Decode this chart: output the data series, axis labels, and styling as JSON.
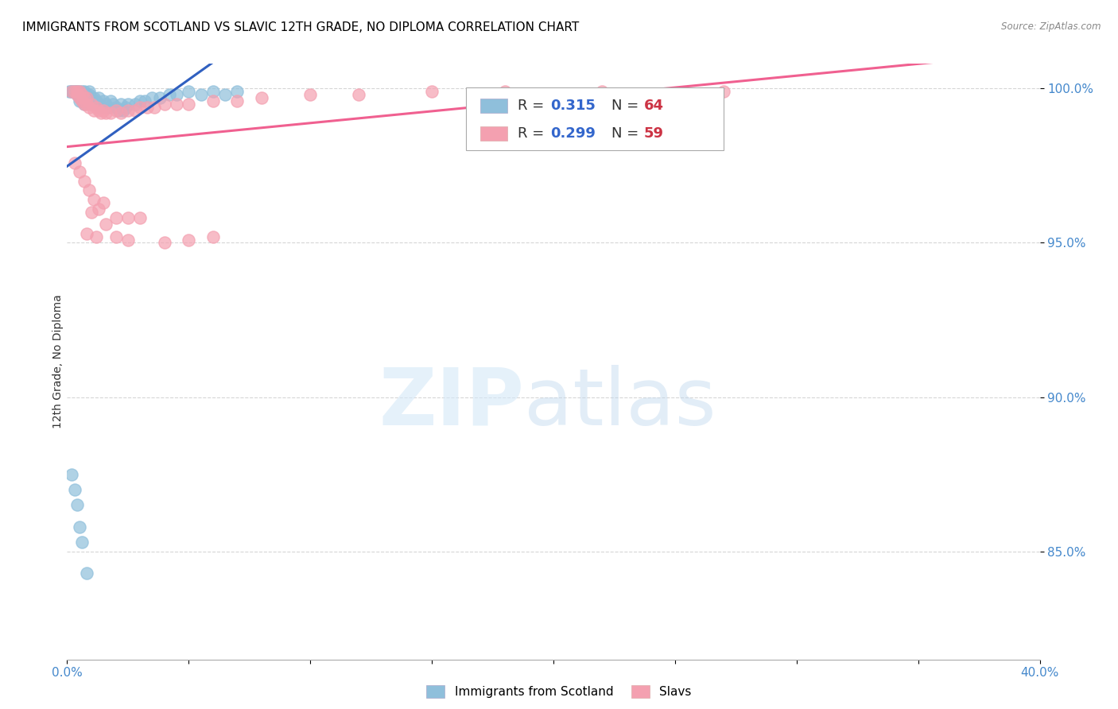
{
  "title": "IMMIGRANTS FROM SCOTLAND VS SLAVIC 12TH GRADE, NO DIPLOMA CORRELATION CHART",
  "source": "Source: ZipAtlas.com",
  "ylabel": "12th Grade, No Diploma",
  "xlim": [
    0.0,
    0.4
  ],
  "ylim": [
    0.815,
    1.008
  ],
  "xticks": [
    0.0,
    0.05,
    0.1,
    0.15,
    0.2,
    0.25,
    0.3,
    0.35,
    0.4
  ],
  "xticklabels": [
    "0.0%",
    "",
    "",
    "",
    "",
    "",
    "",
    "",
    "40.0%"
  ],
  "yticks": [
    0.85,
    0.9,
    0.95,
    1.0
  ],
  "yticklabels": [
    "85.0%",
    "90.0%",
    "95.0%",
    "100.0%"
  ],
  "blue_color": "#8fbfdb",
  "pink_color": "#f4a0b0",
  "blue_line_color": "#3060c0",
  "pink_line_color": "#f06090",
  "tick_color": "#4488cc",
  "legend_fontsize": 13,
  "scotland_x": [
    0.001,
    0.002,
    0.002,
    0.003,
    0.003,
    0.004,
    0.004,
    0.004,
    0.005,
    0.005,
    0.005,
    0.005,
    0.006,
    0.006,
    0.006,
    0.007,
    0.007,
    0.007,
    0.007,
    0.008,
    0.008,
    0.008,
    0.009,
    0.009,
    0.009,
    0.01,
    0.01,
    0.01,
    0.011,
    0.011,
    0.012,
    0.012,
    0.013,
    0.013,
    0.014,
    0.015,
    0.016,
    0.017,
    0.018,
    0.019,
    0.02,
    0.021,
    0.022,
    0.023,
    0.024,
    0.025,
    0.028,
    0.03,
    0.032,
    0.035,
    0.038,
    0.042,
    0.045,
    0.05,
    0.055,
    0.06,
    0.065,
    0.07,
    0.002,
    0.003,
    0.004,
    0.005,
    0.006,
    0.008
  ],
  "scotland_y": [
    0.999,
    0.999,
    0.999,
    0.999,
    0.999,
    0.999,
    0.999,
    0.998,
    0.999,
    0.998,
    0.997,
    0.996,
    0.999,
    0.998,
    0.996,
    0.999,
    0.998,
    0.997,
    0.995,
    0.998,
    0.997,
    0.996,
    0.999,
    0.998,
    0.996,
    0.997,
    0.996,
    0.995,
    0.997,
    0.996,
    0.996,
    0.995,
    0.997,
    0.995,
    0.994,
    0.996,
    0.995,
    0.994,
    0.996,
    0.995,
    0.994,
    0.993,
    0.995,
    0.993,
    0.994,
    0.995,
    0.995,
    0.996,
    0.996,
    0.997,
    0.997,
    0.998,
    0.998,
    0.999,
    0.998,
    0.999,
    0.998,
    0.999,
    0.875,
    0.87,
    0.865,
    0.858,
    0.853,
    0.843
  ],
  "slavs_x": [
    0.002,
    0.003,
    0.004,
    0.004,
    0.005,
    0.005,
    0.006,
    0.006,
    0.007,
    0.007,
    0.008,
    0.008,
    0.009,
    0.01,
    0.011,
    0.012,
    0.013,
    0.014,
    0.015,
    0.016,
    0.018,
    0.02,
    0.022,
    0.025,
    0.028,
    0.03,
    0.033,
    0.036,
    0.04,
    0.045,
    0.05,
    0.06,
    0.07,
    0.08,
    0.1,
    0.12,
    0.15,
    0.18,
    0.22,
    0.27,
    0.003,
    0.005,
    0.007,
    0.009,
    0.011,
    0.013,
    0.015,
    0.02,
    0.025,
    0.01,
    0.008,
    0.012,
    0.016,
    0.02,
    0.025,
    0.03,
    0.04,
    0.05,
    0.06
  ],
  "slavs_y": [
    0.999,
    0.999,
    0.999,
    0.998,
    0.999,
    0.997,
    0.998,
    0.996,
    0.997,
    0.995,
    0.997,
    0.995,
    0.994,
    0.995,
    0.993,
    0.994,
    0.993,
    0.992,
    0.993,
    0.992,
    0.992,
    0.993,
    0.992,
    0.993,
    0.993,
    0.994,
    0.994,
    0.994,
    0.995,
    0.995,
    0.995,
    0.996,
    0.996,
    0.997,
    0.998,
    0.998,
    0.999,
    0.999,
    0.999,
    0.999,
    0.976,
    0.973,
    0.97,
    0.967,
    0.964,
    0.961,
    0.963,
    0.958,
    0.958,
    0.96,
    0.953,
    0.952,
    0.956,
    0.952,
    0.951,
    0.958,
    0.95,
    0.951,
    0.952
  ],
  "background_color": "#ffffff",
  "grid_color": "#cccccc"
}
